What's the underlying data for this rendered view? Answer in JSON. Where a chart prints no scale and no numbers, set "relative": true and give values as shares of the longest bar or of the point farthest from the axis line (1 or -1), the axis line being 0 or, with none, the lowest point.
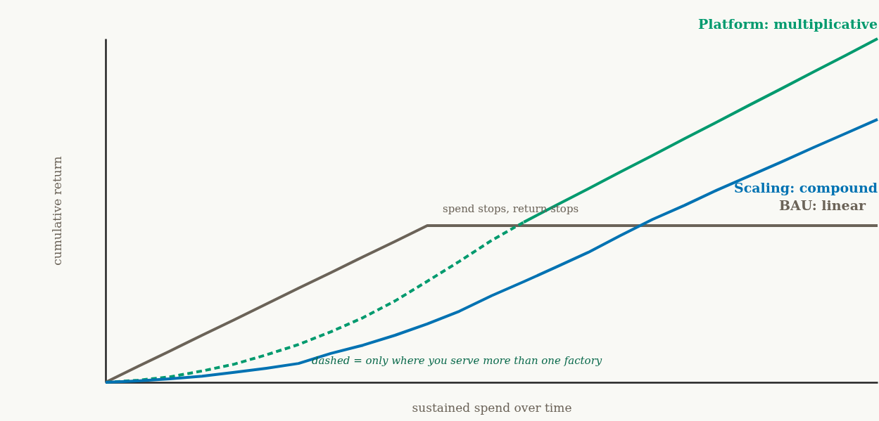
{
  "chart_data": {
    "type": "line",
    "relative": true,
    "xlabel": "sustained spend over time",
    "ylabel": "cumulative return",
    "categories": [
      null,
      null,
      null,
      null,
      null,
      null,
      null,
      null,
      null,
      null,
      null,
      null,
      null,
      null,
      null,
      null,
      null,
      null,
      null,
      null,
      null,
      null,
      null,
      null,
      null
    ],
    "series": [
      {
        "name": "BAU: linear",
        "color": "#6b6358",
        "line_style": "solid",
        "values": [
          0,
          0.046,
          0.091,
          0.137,
          0.182,
          0.228,
          0.274,
          0.319,
          0.365,
          0.41,
          0.456,
          0.456,
          0.456,
          0.456,
          0.456,
          0.456,
          0.456,
          0.456,
          0.456,
          0.456,
          0.456,
          0.456,
          0.456,
          0.456,
          0.456
        ]
      },
      {
        "color": "#009a6e",
        "line_style": "dashed",
        "values": [
          0,
          0.006,
          0.016,
          0.033,
          0.053,
          0.08,
          0.11,
          0.147,
          0.188,
          0.237,
          0.294,
          0.352,
          0.413,
          0.466,
          null,
          null,
          null,
          null,
          null,
          null,
          null,
          null,
          null,
          null,
          null
        ]
      },
      {
        "name": "Platform: multiplicative",
        "color": "#009a6e",
        "line_style": "solid",
        "values": [
          null,
          null,
          null,
          null,
          null,
          null,
          null,
          null,
          null,
          null,
          null,
          null,
          null,
          0.466,
          0.515,
          0.563,
          0.612,
          0.66,
          0.709,
          0.757,
          0.806,
          0.854,
          0.903,
          0.951,
          1.0
        ]
      },
      {
        "name": "Scaling: compound",
        "color": "#0072b2",
        "line_style": "solid",
        "values": [
          0,
          0.004,
          0.01,
          0.018,
          0.029,
          0.041,
          0.055,
          0.084,
          0.108,
          0.137,
          0.17,
          0.207,
          0.252,
          0.293,
          0.335,
          0.378,
          0.427,
          0.474,
          0.515,
          0.559,
          0.6,
          0.641,
          0.683,
          0.724,
          0.765
        ]
      }
    ],
    "annotations": [
      "spend stops, return stops",
      "dashed = only where you serve more than one factory"
    ],
    "grid": false
  }
}
